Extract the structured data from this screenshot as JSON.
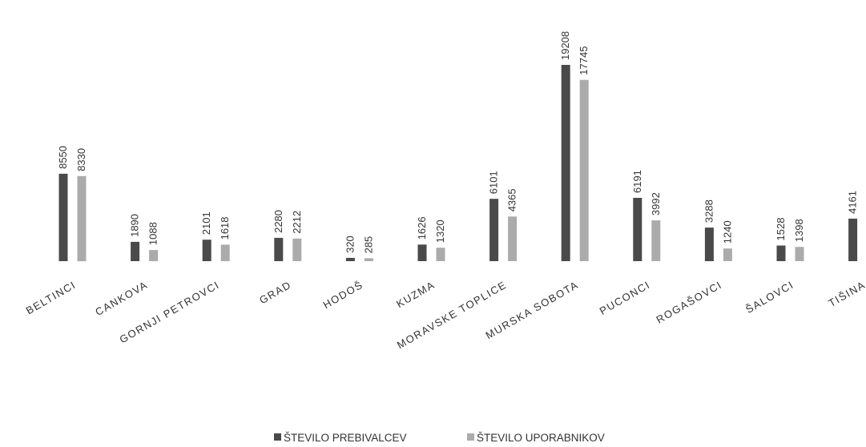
{
  "chart_data": {
    "type": "bar",
    "categories": [
      "BELTINCI",
      "CANKOVA",
      "GORNJI PETROVCI",
      "GRAD",
      "HODOŠ",
      "KUZMA",
      "MORAVSKE TOPLICE",
      "MURSKA SOBOTA",
      "PUCONCI",
      "ROGAŠOVCI",
      "ŠALOVCI",
      "TIŠINA"
    ],
    "series": [
      {
        "name": "ŠTEVILO PREBIVALCEV",
        "values": [
          8550,
          1890,
          2101,
          2280,
          320,
          1626,
          6101,
          19208,
          6191,
          3288,
          1528,
          4161
        ],
        "color": "#4a4a4a"
      },
      {
        "name": "ŠTEVILO UPORABNIKOV",
        "values": [
          8330,
          1088,
          1618,
          2212,
          285,
          1320,
          4365,
          17745,
          3992,
          1240,
          1398,
          null
        ],
        "color": "#ababab"
      }
    ],
    "ylim": [
      0,
      20000
    ],
    "grid": false,
    "legend_position": "bottom",
    "value_labels": true
  }
}
